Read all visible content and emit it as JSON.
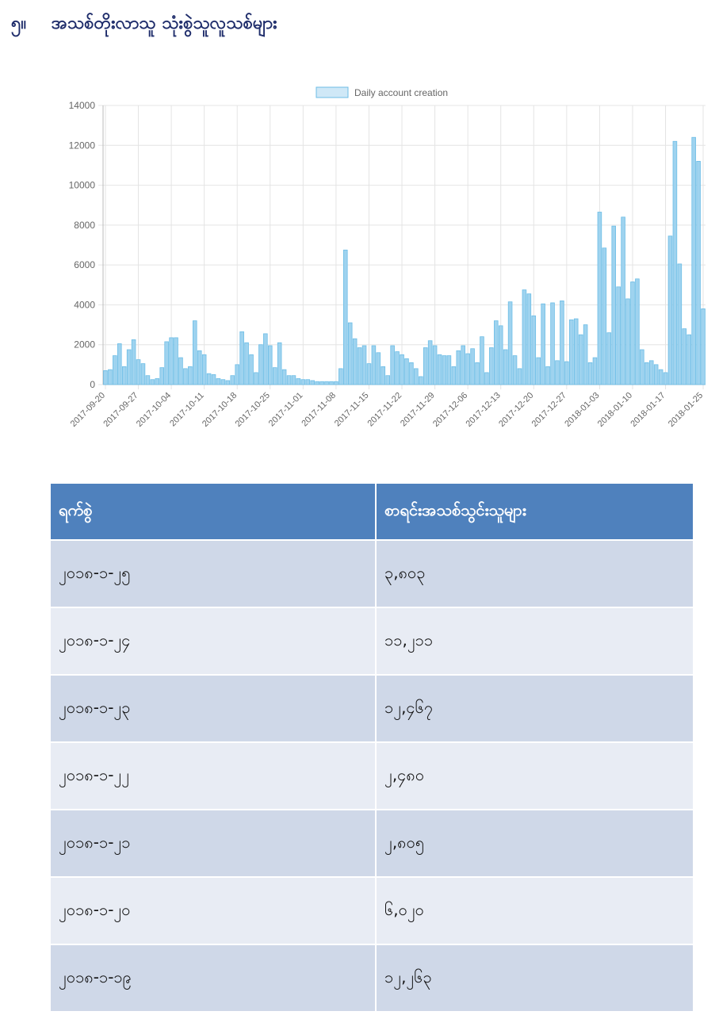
{
  "heading": {
    "number": "၅။",
    "text": "အသစ်တိုးလာသူ သုံးစွဲသူလူသစ်များ"
  },
  "chart_data": {
    "type": "bar",
    "legend": "Daily account creation",
    "legend_position": "top",
    "ylim": [
      0,
      14000
    ],
    "yticks": [
      0,
      2000,
      4000,
      6000,
      8000,
      10000,
      12000,
      14000
    ],
    "grid": true,
    "bar_color": "#9fd3ef",
    "bar_border": "#6cbde6",
    "x_start": "2017-09-20",
    "xtick_labels": [
      "2017-09-20",
      "2017-09-27",
      "2017-10-04",
      "2017-10-11",
      "2017-10-18",
      "2017-10-25",
      "2017-11-01",
      "2017-11-08",
      "2017-11-15",
      "2017-11-22",
      "2017-11-29",
      "2017-12-06",
      "2017-12-13",
      "2017-12-20",
      "2017-12-27",
      "2018-01-03",
      "2018-01-10",
      "2018-01-17",
      "2018-01-25"
    ],
    "values": [
      700,
      750,
      1450,
      2050,
      900,
      1750,
      2250,
      1250,
      1050,
      450,
      250,
      300,
      850,
      2150,
      2350,
      2350,
      1350,
      800,
      900,
      3200,
      1700,
      1500,
      550,
      500,
      300,
      250,
      200,
      450,
      1000,
      2650,
      2100,
      1500,
      600,
      2000,
      2550,
      1950,
      850,
      2100,
      750,
      450,
      450,
      300,
      250,
      250,
      200,
      150,
      150,
      150,
      150,
      150,
      800,
      6750,
      3100,
      2300,
      1850,
      1950,
      1050,
      1950,
      1600,
      900,
      450,
      1950,
      1650,
      1500,
      1300,
      1100,
      800,
      400,
      1850,
      2200,
      1950,
      1500,
      1450,
      1450,
      900,
      1700,
      1950,
      1550,
      1800,
      1100,
      2400,
      600,
      1850,
      3200,
      2950,
      1750,
      4150,
      1450,
      800,
      4750,
      4550,
      3450,
      1350,
      4050,
      900,
      4100,
      1200,
      4200,
      1150,
      3250,
      3300,
      2500,
      3000,
      1100,
      1350,
      8650,
      6850,
      2600,
      7950,
      4900,
      8400,
      4300,
      5150,
      5300,
      1750,
      1100,
      1200,
      1000,
      750,
      600,
      7450,
      12200,
      6050,
      2800,
      2500,
      12400,
      11200,
      3800
    ]
  },
  "table": {
    "headers": [
      "ရက်စွဲ",
      "စာရင်းအသစ်သွင်းသူများ"
    ],
    "rows": [
      [
        "၂၀၁၈-၁-၂၅",
        "၃,၈၀၃"
      ],
      [
        "၂၀၁၈-၁-၂၄",
        "၁၁,၂၁၁"
      ],
      [
        "၂၀၁၈-၁-၂၃",
        "၁၂,၄၆၇"
      ],
      [
        "၂၀၁၈-၁-၂၂",
        "၂,၄၈၀"
      ],
      [
        "၂၀၁၈-၁-၂၁",
        "၂,၈၀၅"
      ],
      [
        "၂၀၁၈-၁-၂၀",
        "၆,၀၂၀"
      ],
      [
        "၂၀၁၈-၁-၁၉",
        "၁၂,၂၆၃"
      ]
    ]
  }
}
